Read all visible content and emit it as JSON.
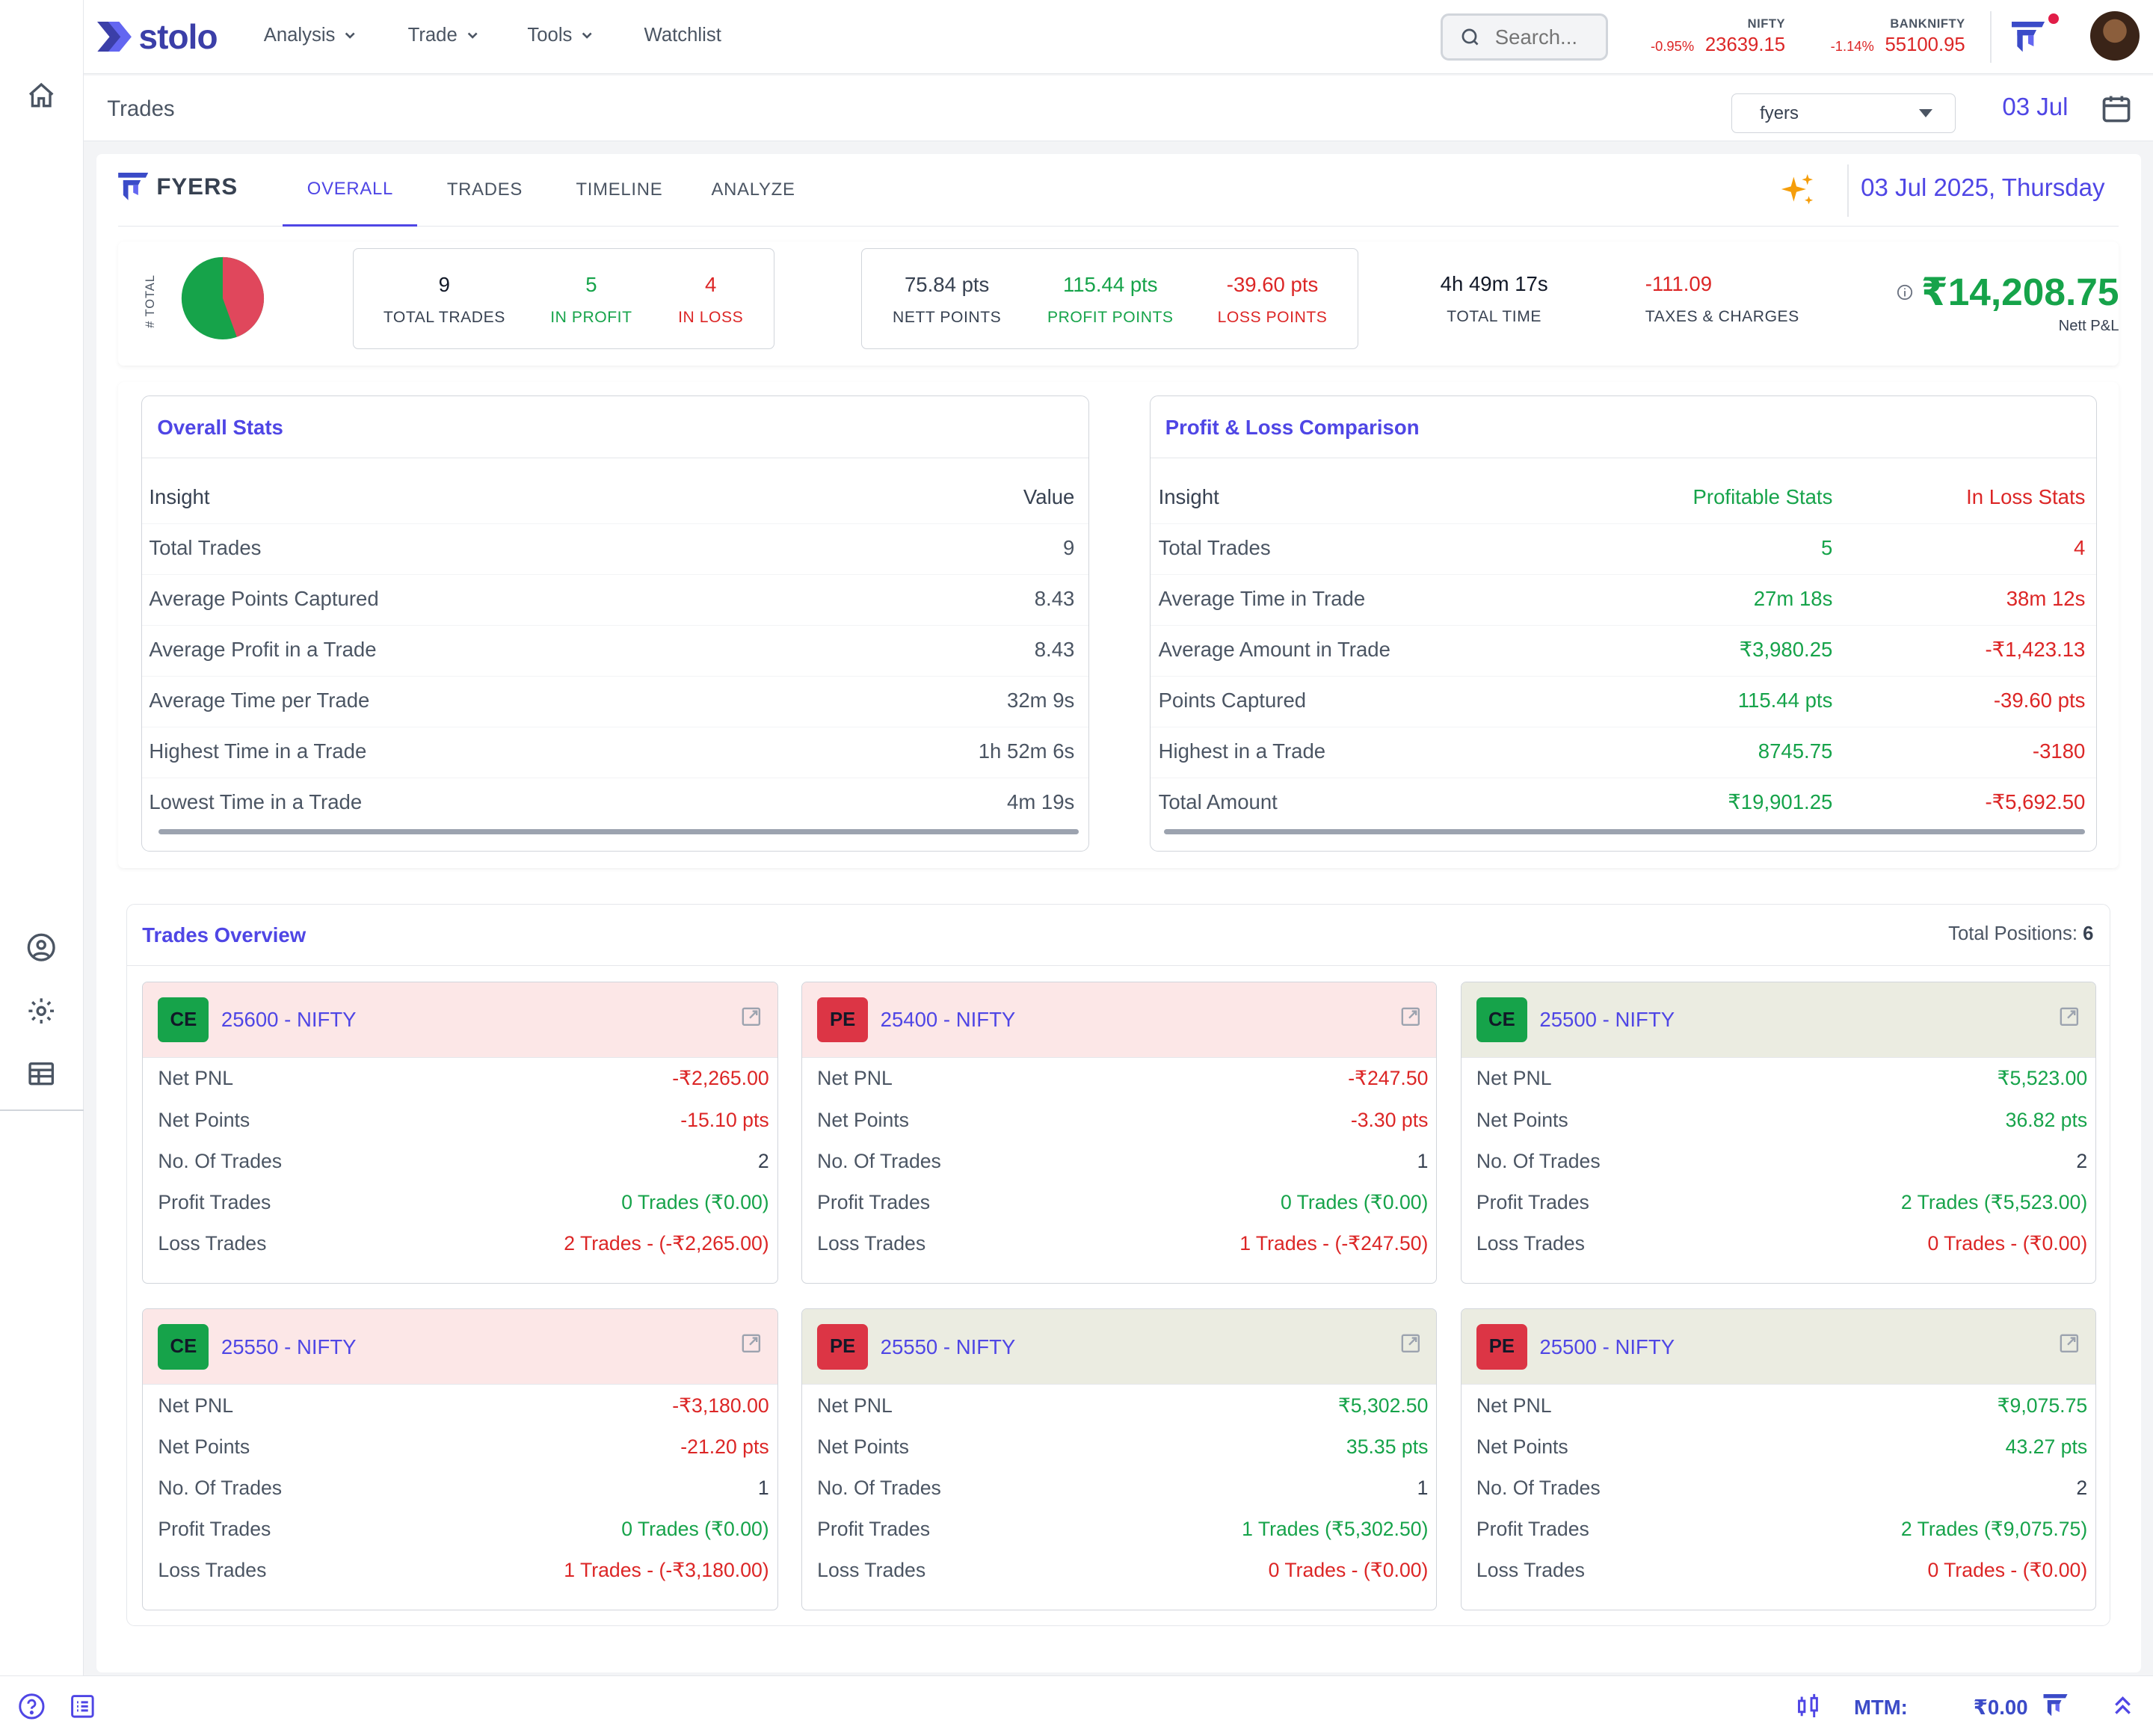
{
  "app": {
    "logo_text": "stolo"
  },
  "nav": {
    "items": [
      {
        "label": "Analysis",
        "has_dropdown": true
      },
      {
        "label": "Trade",
        "has_dropdown": true
      },
      {
        "label": "Tools",
        "has_dropdown": true
      },
      {
        "label": "Watchlist",
        "has_dropdown": false
      }
    ],
    "search_placeholder": "Search..."
  },
  "indices": [
    {
      "name": "NIFTY",
      "change": "-0.95%",
      "value": "23639.15"
    },
    {
      "name": "BANKNIFTY",
      "change": "-1.14%",
      "value": "55100.95"
    }
  ],
  "subheader": {
    "title": "Trades",
    "broker": "fyers",
    "date_short": "03 Jul"
  },
  "tabs_bar": {
    "broker_name": "FYERS",
    "tabs": [
      "OVERALL",
      "TRADES",
      "TIMELINE",
      "ANALYZE"
    ],
    "active_tab": "OVERALL",
    "full_date": "03 Jul 2025, Thursday"
  },
  "summary": {
    "total_label": "# TOTAL",
    "pie": {
      "profit": 5,
      "loss": 4
    },
    "total_trades": {
      "value": "9",
      "label": "TOTAL TRADES"
    },
    "in_profit": {
      "value": "5",
      "label": "IN PROFIT"
    },
    "in_loss": {
      "value": "4",
      "label": "IN LOSS"
    },
    "nett_points": {
      "value": "75.84 pts",
      "label": "NETT POINTS"
    },
    "profit_points": {
      "value": "115.44 pts",
      "label": "PROFIT POINTS"
    },
    "loss_points": {
      "value": "-39.60 pts",
      "label": "LOSS POINTS"
    },
    "total_time": {
      "value": "4h 49m 17s",
      "label": "TOTAL TIME"
    },
    "taxes": {
      "value": "-111.09",
      "label": "TAXES & CHARGES"
    },
    "nett_pnl": {
      "value": "₹14,208.75",
      "label": "Nett P&L"
    }
  },
  "overall_stats": {
    "title": "Overall Stats",
    "headers": [
      "Insight",
      "Value"
    ],
    "rows": [
      {
        "insight": "Total Trades",
        "value": "9"
      },
      {
        "insight": "Average Points Captured",
        "value": "8.43"
      },
      {
        "insight": "Average Profit in a Trade",
        "value": "8.43"
      },
      {
        "insight": "Average Time per Trade",
        "value": "32m 9s"
      },
      {
        "insight": "Highest Time in a Trade",
        "value": "1h 52m 6s"
      },
      {
        "insight": "Lowest Time in a Trade",
        "value": "4m 19s"
      }
    ]
  },
  "pnl_comparison": {
    "title": "Profit & Loss Comparison",
    "headers": [
      "Insight",
      "Profitable Stats",
      "In Loss Stats"
    ],
    "rows": [
      {
        "insight": "Total Trades",
        "profit": "5",
        "loss": "4"
      },
      {
        "insight": "Average Time in Trade",
        "profit": "27m 18s",
        "loss": "38m 12s"
      },
      {
        "insight": "Average Amount in Trade",
        "profit": "₹3,980.25",
        "loss": "-₹1,423.13"
      },
      {
        "insight": "Points Captured",
        "profit": "115.44 pts",
        "loss": "-39.60 pts"
      },
      {
        "insight": "Highest in a Trade",
        "profit": "8745.75",
        "loss": "-3180"
      },
      {
        "insight": "Total Amount",
        "profit": "₹19,901.25",
        "loss": "-₹5,692.50"
      }
    ]
  },
  "trades_overview": {
    "title": "Trades Overview",
    "total_positions_label": "Total Positions:",
    "total_positions": "6",
    "labels": [
      "Net PNL",
      "Net Points",
      "No. Of Trades",
      "Profit Trades",
      "Loss Trades"
    ],
    "cards": [
      {
        "type": "CE",
        "title": "25600 - NIFTY",
        "status": "loss",
        "net_pnl": "-₹2,265.00",
        "net_points": "-15.10 pts",
        "trades": "2",
        "profit_trades": "0 Trades (₹0.00)",
        "loss_trades": "2 Trades - (-₹2,265.00)"
      },
      {
        "type": "PE",
        "title": "25400 - NIFTY",
        "status": "loss",
        "net_pnl": "-₹247.50",
        "net_points": "-3.30 pts",
        "trades": "1",
        "profit_trades": "0 Trades (₹0.00)",
        "loss_trades": "1 Trades - (-₹247.50)"
      },
      {
        "type": "CE",
        "title": "25500 - NIFTY",
        "status": "profit",
        "net_pnl": "₹5,523.00",
        "net_points": "36.82 pts",
        "trades": "2",
        "profit_trades": "2 Trades (₹5,523.00)",
        "loss_trades": "0 Trades - (₹0.00)"
      },
      {
        "type": "CE",
        "title": "25550 - NIFTY",
        "status": "loss",
        "net_pnl": "-₹3,180.00",
        "net_points": "-21.20 pts",
        "trades": "1",
        "profit_trades": "0 Trades (₹0.00)",
        "loss_trades": "1 Trades - (-₹3,180.00)"
      },
      {
        "type": "PE",
        "title": "25550 - NIFTY",
        "status": "profit",
        "net_pnl": "₹5,302.50",
        "net_points": "35.35 pts",
        "trades": "1",
        "profit_trades": "1 Trades (₹5,302.50)",
        "loss_trades": "0 Trades - (₹0.00)"
      },
      {
        "type": "PE",
        "title": "25500 - NIFTY",
        "status": "profit",
        "net_pnl": "₹9,075.75",
        "net_points": "43.27 pts",
        "trades": "2",
        "profit_trades": "2 Trades (₹9,075.75)",
        "loss_trades": "0 Trades - (₹0.00)"
      }
    ]
  },
  "footer": {
    "mtm_label": "MTM:",
    "mtm_value": "₹0.00"
  },
  "colors": {
    "accent": "#4f46e5",
    "profit": "#16a34a",
    "loss": "#dc2626"
  }
}
